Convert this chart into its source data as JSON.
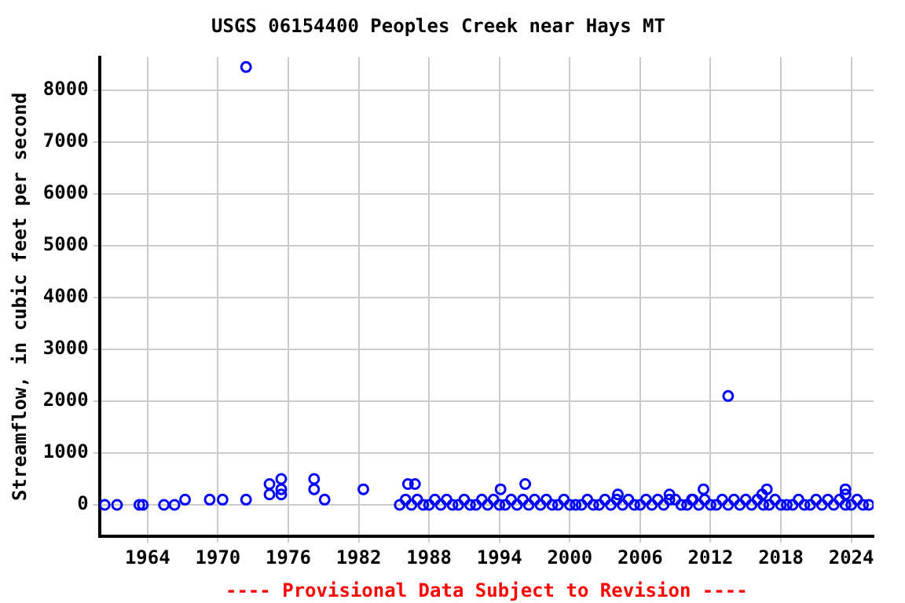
{
  "chart_data": {
    "type": "scatter",
    "title": "USGS 06154400 Peoples Creek near Hays MT",
    "ylabel": "Streamflow, in cubic feet per second",
    "annotations": [
      "---- Provisional Data Subject to Revision ----"
    ],
    "xlim": [
      1959.9,
      2025.9
    ],
    "xticks": [
      1964,
      1970,
      1976,
      1982,
      1988,
      1994,
      2000,
      2006,
      2012,
      2018,
      2024
    ],
    "ylim": [
      -610,
      8640
    ],
    "yticks": [
      0,
      1000,
      2000,
      3000,
      4000,
      5000,
      6000,
      7000,
      8000
    ],
    "grid": true,
    "marker": "circle",
    "legend": false,
    "series": [
      {
        "color": "#0000ff",
        "x": [
          1960.35,
          1961.4,
          1963.3,
          1963.6,
          1965.4,
          1966.3,
          1967.2,
          1969.3,
          1970.4,
          1972.4,
          1972.4,
          1974.4,
          1974.4,
          1975.4,
          1975.4,
          1975.4,
          1978.2,
          1978.2,
          1979.1,
          1982.4,
          1986.2,
          1986.8,
          1994.1,
          1996.2,
          2004.1,
          2008.5,
          2010.4,
          2011.4,
          2013.5,
          2016.4,
          2016.8,
          2023.5,
          2023.5
        ],
        "values": [
          0,
          0,
          0,
          0,
          0,
          0,
          100,
          100,
          100,
          8450,
          100,
          400,
          200,
          500,
          300,
          200,
          500,
          300,
          100,
          300,
          400,
          400,
          300,
          400,
          200,
          200,
          100,
          300,
          2100,
          200,
          300,
          300,
          200
        ]
      },
      {
        "color": "#0000ff",
        "x": [
          1985.5,
          1986,
          1986.5,
          1987,
          1987.5,
          1988,
          1988.5,
          1989,
          1989.5,
          1990,
          1990.5,
          1991,
          1991.5,
          1992,
          1992.5,
          1993,
          1993.5,
          1994,
          1994.5,
          1995,
          1995.5,
          1996,
          1996.5,
          1997,
          1997.5,
          1998,
          1998.5,
          1999,
          1999.5,
          2000,
          2000.5,
          2001,
          2001.5,
          2002,
          2002.5,
          2003,
          2003.5,
          2004,
          2004.5,
          2005,
          2005.5,
          2006,
          2006.5,
          2007,
          2007.5,
          2008,
          2008.5,
          2009,
          2009.5,
          2010,
          2010.5,
          2011,
          2011.5,
          2012,
          2012.5,
          2013,
          2013.5,
          2014,
          2014.5,
          2015,
          2015.5,
          2016,
          2016.5,
          2017,
          2017.5,
          2018,
          2018.5,
          2019,
          2019.5,
          2020,
          2020.5,
          2021,
          2021.5,
          2022,
          2022.5,
          2023,
          2023.5,
          2024,
          2024.5,
          2025,
          2025.5
        ],
        "values": [
          0,
          100,
          0,
          100,
          0,
          0,
          100,
          0,
          100,
          0,
          0,
          100,
          0,
          0,
          100,
          0,
          100,
          0,
          0,
          100,
          0,
          100,
          0,
          100,
          0,
          100,
          0,
          0,
          100,
          0,
          0,
          0,
          100,
          0,
          0,
          100,
          0,
          100,
          0,
          100,
          0,
          0,
          100,
          0,
          100,
          0,
          100,
          100,
          0,
          0,
          100,
          0,
          100,
          0,
          0,
          100,
          0,
          100,
          0,
          100,
          0,
          100,
          0,
          0,
          100,
          0,
          0,
          0,
          100,
          0,
          0,
          100,
          0,
          100,
          0,
          100,
          0,
          0,
          100,
          0,
          0
        ]
      }
    ]
  }
}
